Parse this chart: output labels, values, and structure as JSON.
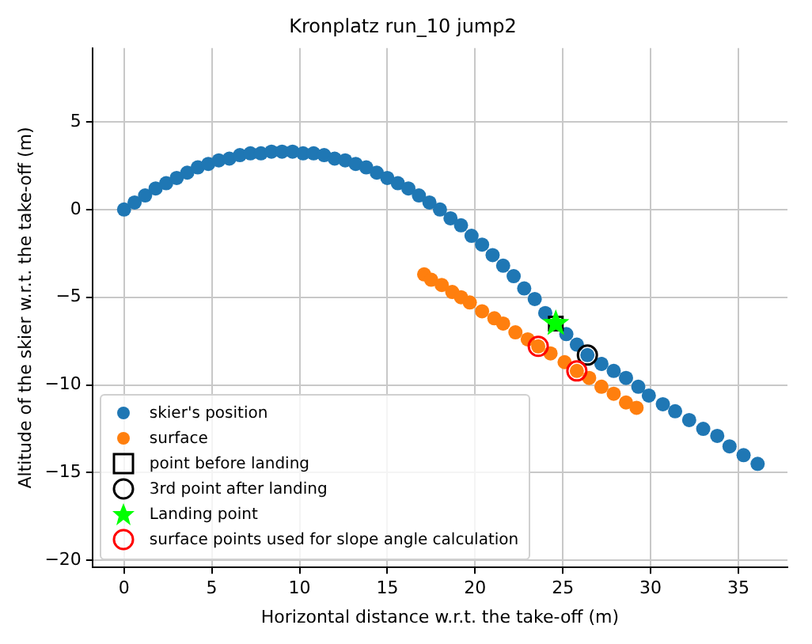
{
  "chart_data": {
    "type": "scatter",
    "title": "Kronplatz run_10 jump2",
    "xlabel": "Horizontal distance w.r.t. the take-off (m)",
    "ylabel": "Altitude of the skier w.r.t. the take-off (m)",
    "xlim": [
      -1.8,
      37.8
    ],
    "ylim": [
      -20.4,
      9.2
    ],
    "xticks": [
      0,
      5,
      10,
      15,
      20,
      25,
      30,
      35
    ],
    "yticks": [
      -20,
      -15,
      -10,
      -5,
      0,
      5
    ],
    "grid": true,
    "legend": "bottom left",
    "series": [
      {
        "name": "skier's position",
        "color": "#1f77b4",
        "marker": "circle",
        "x": [
          0,
          0.6,
          1.2,
          1.8,
          2.4,
          3.0,
          3.6,
          4.2,
          4.8,
          5.4,
          6.0,
          6.6,
          7.2,
          7.8,
          8.4,
          9.0,
          9.6,
          10.2,
          10.8,
          11.4,
          12.0,
          12.6,
          13.2,
          13.8,
          14.4,
          15.0,
          15.6,
          16.2,
          16.8,
          17.4,
          18.0,
          18.6,
          19.2,
          19.8,
          20.4,
          21.0,
          21.6,
          22.2,
          22.8,
          23.4,
          24.0,
          24.6,
          25.2,
          25.8,
          26.4,
          27.2,
          27.9,
          28.6,
          29.3,
          29.9,
          30.7,
          31.4,
          32.2,
          33.0,
          33.8,
          34.5,
          35.3,
          36.1
        ],
        "values": [
          0,
          0.4,
          0.8,
          1.2,
          1.5,
          1.8,
          2.1,
          2.4,
          2.6,
          2.8,
          2.9,
          3.1,
          3.2,
          3.2,
          3.3,
          3.3,
          3.3,
          3.2,
          3.2,
          3.1,
          2.9,
          2.8,
          2.6,
          2.4,
          2.1,
          1.8,
          1.5,
          1.2,
          0.8,
          0.4,
          0,
          -0.5,
          -0.9,
          -1.5,
          -2.0,
          -2.6,
          -3.2,
          -3.8,
          -4.5,
          -5.1,
          -5.9,
          null,
          -7.1,
          -7.7,
          -8.3,
          -8.8,
          -9.2,
          -9.6,
          -10.1,
          -10.6,
          -11.1,
          -11.5,
          -12.0,
          -12.5,
          -12.9,
          -13.5,
          -14.0,
          -14.5
        ]
      },
      {
        "name": "surface",
        "color": "#ff7f0e",
        "marker": "circle",
        "x": [
          17.1,
          17.5,
          18.1,
          18.7,
          19.2,
          19.7,
          20.4,
          21.1,
          21.6,
          22.3,
          23.0,
          23.6,
          24.3,
          25.1,
          25.8,
          26.5,
          27.2,
          27.9,
          28.6,
          29.2
        ],
        "values": [
          -3.7,
          -4.0,
          -4.3,
          -4.7,
          -5.0,
          -5.3,
          -5.8,
          -6.2,
          -6.5,
          -7.0,
          -7.4,
          -7.8,
          -8.2,
          -8.7,
          -9.2,
          -9.6,
          -10.1,
          -10.5,
          -11.0,
          -11.3
        ]
      },
      {
        "name": "point before landing",
        "color": "#000000",
        "marker": "square",
        "x": [
          24.6
        ],
        "values": [
          -6.5
        ]
      },
      {
        "name": "3rd point after landing",
        "color": "#000000",
        "marker": "circle",
        "x": [
          26.4
        ],
        "values": [
          -8.3
        ]
      },
      {
        "name": "Landing point",
        "color": "#00ff00",
        "marker": "star",
        "x": [
          24.6
        ],
        "values": [
          -6.5
        ]
      },
      {
        "name": "surface points used for slope angle calculation",
        "color": "#ff0000",
        "marker": "circle",
        "x": [
          23.6,
          25.8
        ],
        "values": [
          -7.8,
          -9.2
        ]
      }
    ]
  }
}
